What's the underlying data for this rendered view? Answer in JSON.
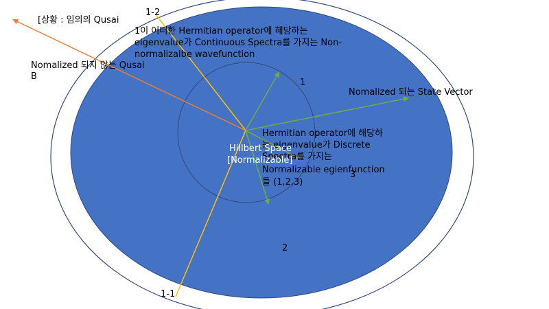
{
  "labels": {
    "situation": "[상황 : 임의의 Qusai",
    "non_normalized_line1": "Nomalized 되지 않는 Qusai",
    "non_normalized_line2": "B",
    "continuous_line1": "1이 어떠한 Hermitian operator에 해당하는",
    "continuous_line2": "eigenvalue가 Continuous Spectra를 가지는 Non-",
    "continuous_line3": "normalizalbe wavefunction",
    "label_1_2": "1-2",
    "label_1_1": "1-1",
    "label_1": "1",
    "label_2": "2",
    "label_3": "3",
    "normalized_state": "Nomalized 되는 State Vector",
    "hilbert_line1": "Hillbert Space",
    "hilbert_line2": "[Normalizable]",
    "discrete_line1": "Hermitian operator에 해당하",
    "discrete_line2": "는 eigenvalue가 Discrete",
    "discrete_line3": "Spectra를 가지는",
    "discrete_line4": "Normalizable egienfunction",
    "discrete_line5": "들 (1,2,3)"
  },
  "colors": {
    "outer_ring": "#2f4a7f",
    "blue_fill": "#4472c4",
    "inner_circle": "#2f4a7f",
    "orange_arrow": "#ed7d31",
    "yellow_line": "#ffc000",
    "green_arrow": "#70ad47"
  }
}
